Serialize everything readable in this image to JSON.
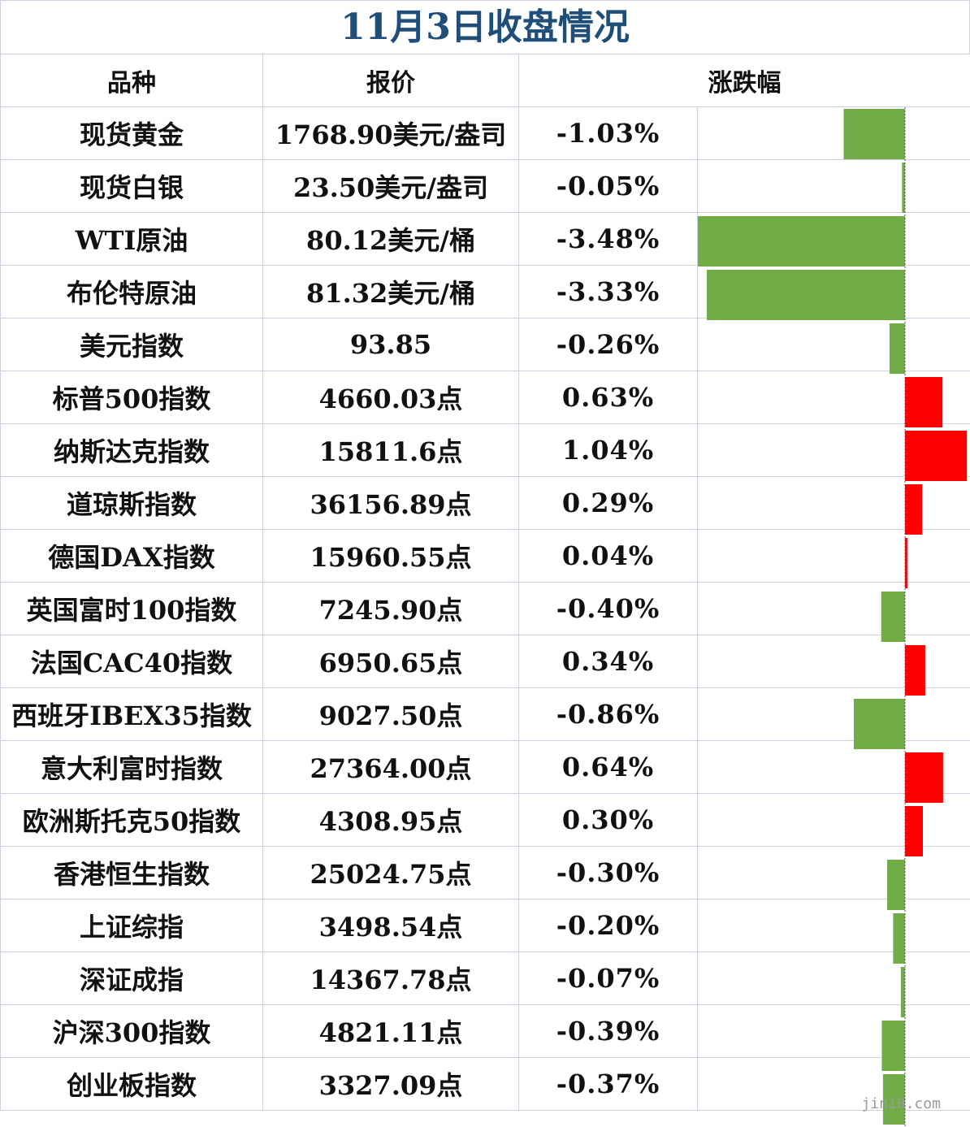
{
  "title": "11月3日收盘情况",
  "headers": {
    "name": "品种",
    "quote": "报价",
    "change": "涨跌幅"
  },
  "colors": {
    "positive": "#ff0000",
    "negative": "#70ad47",
    "title": "#1f4e79",
    "grid": "#cfd0e0"
  },
  "chart_data": {
    "type": "bar",
    "orientation": "horizontal",
    "categories": [
      "现货黄金",
      "现货白银",
      "WTI原油",
      "布伦特原油",
      "美元指数",
      "标普500指数",
      "纳斯达克指数",
      "道琼斯指数",
      "德国DAX指数",
      "英国富时100指数",
      "法国CAC40指数",
      "西班牙IBEX35指数",
      "意大利富时指数",
      "欧洲斯托克50指数",
      "香港恒生指数",
      "上证综指",
      "深证成指",
      "沪深300指数",
      "创业板指数"
    ],
    "quotes": [
      "1768.90美元/盎司",
      "23.50美元/盎司",
      "80.12美元/桶",
      "81.32美元/桶",
      "93.85",
      "4660.03点",
      "15811.6点",
      "36156.89点",
      "15960.55点",
      "7245.90点",
      "6950.65点",
      "9027.50点",
      "27364.00点",
      "4308.95点",
      "25024.75点",
      "3498.54点",
      "14367.78点",
      "4821.11点",
      "3327.09点"
    ],
    "change_labels": [
      "-1.03%",
      "-0.05%",
      "-3.48%",
      "-3.33%",
      "-0.26%",
      "0.63%",
      "1.04%",
      "0.29%",
      "0.04%",
      "-0.40%",
      "0.34%",
      "-0.86%",
      "0.64%",
      "0.30%",
      "-0.30%",
      "-0.20%",
      "-0.07%",
      "-0.39%",
      "-0.37%"
    ],
    "values": [
      -1.03,
      -0.05,
      -3.48,
      -3.33,
      -0.26,
      0.63,
      1.04,
      0.29,
      0.04,
      -0.4,
      0.34,
      -0.86,
      0.64,
      0.3,
      -0.3,
      -0.2,
      -0.07,
      -0.39,
      -0.37
    ],
    "xlim": [
      -3.48,
      1.04
    ],
    "unit": "%"
  },
  "watermark": "jin10.com"
}
